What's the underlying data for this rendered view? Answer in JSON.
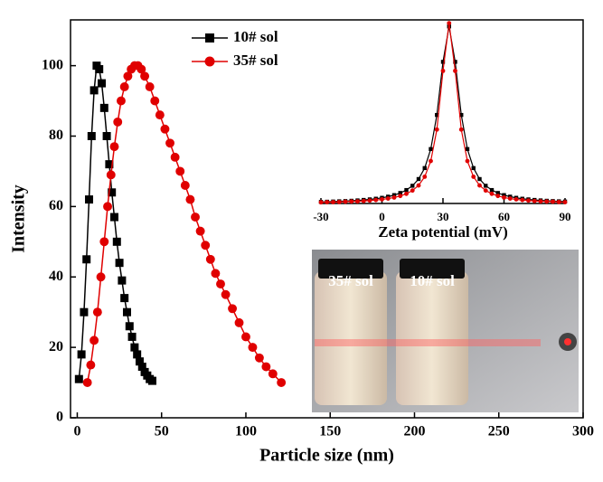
{
  "chart_data": [
    {
      "type": "line",
      "xlabel": "Particle size (nm)",
      "ylabel": "Intensity",
      "xlim": [
        -4,
        300
      ],
      "xticks": [
        0,
        50,
        100,
        150,
        200,
        250,
        300
      ],
      "ylim": [
        0,
        113
      ],
      "yticks": [
        0,
        20,
        40,
        60,
        80,
        100
      ],
      "legend": "top-center",
      "series": [
        {
          "name": "10# sol",
          "color": "#000000",
          "marker": "square",
          "x": [
            1,
            2.5,
            4,
            5.5,
            7,
            8.5,
            10,
            11.5,
            13,
            14.5,
            16,
            17.5,
            19,
            20.5,
            22,
            23.5,
            25,
            26.5,
            28,
            29.5,
            31,
            32.5,
            34,
            35.5,
            37,
            38.5,
            40,
            41.5,
            43,
            44.5
          ],
          "values": [
            11,
            18,
            30,
            45,
            62,
            80,
            93,
            100,
            99,
            95,
            88,
            80,
            72,
            64,
            57,
            50,
            44,
            39,
            34,
            30,
            26,
            23,
            20,
            18,
            16,
            14.5,
            13,
            12,
            11,
            10.5
          ]
        },
        {
          "name": "35# sol",
          "color": "#e00000",
          "marker": "circle",
          "x": [
            6,
            8,
            10,
            12,
            14,
            16,
            18,
            20,
            22,
            24,
            26,
            28,
            30,
            32,
            34,
            36,
            38,
            40,
            43,
            46,
            49,
            52,
            55,
            58,
            61,
            64,
            67,
            70,
            73,
            76,
            79,
            82,
            85,
            88,
            92,
            96,
            100,
            104,
            108,
            112,
            116,
            121
          ],
          "values": [
            10,
            15,
            22,
            30,
            40,
            50,
            60,
            69,
            77,
            84,
            90,
            94,
            97,
            99,
            100,
            100,
            99,
            97,
            94,
            90,
            86,
            82,
            78,
            74,
            70,
            66,
            62,
            57,
            53,
            49,
            45,
            41,
            38,
            35,
            31,
            27,
            23,
            20,
            17,
            14.5,
            12.5,
            10
          ]
        }
      ]
    },
    {
      "type": "line",
      "xlabel": "Zeta potential (mV)",
      "xlim": [
        -30,
        90
      ],
      "xticks": [
        -30,
        0,
        30,
        60,
        90
      ],
      "ylim": [
        0,
        112
      ],
      "x": [
        -30,
        -27,
        -24,
        -21,
        -18,
        -15,
        -12,
        -9,
        -6,
        -3,
        0,
        3,
        6,
        9,
        12,
        15,
        18,
        21,
        24,
        27,
        30,
        33,
        36,
        39,
        42,
        45,
        48,
        51,
        54,
        57,
        60,
        63,
        66,
        69,
        72,
        75,
        78,
        81,
        84,
        87,
        90
      ],
      "series": [
        {
          "color": "#000000",
          "marker": "square",
          "values": [
            0.96,
            1.07,
            1.19,
            1.32,
            1.47,
            1.65,
            1.88,
            2.16,
            2.5,
            2.9,
            3.45,
            4.15,
            5.1,
            6.4,
            8.2,
            10.8,
            14.9,
            21.6,
            33.2,
            54,
            86.4,
            108,
            86.4,
            54,
            33.2,
            21.6,
            14.9,
            10.8,
            8.2,
            6.4,
            5.1,
            4.15,
            3.45,
            2.9,
            2.5,
            2.16,
            1.88,
            1.65,
            1.47,
            1.32,
            1.19
          ]
        },
        {
          "color": "#e00000",
          "marker": "circle",
          "values": [
            0.7,
            0.8,
            0.8,
            0.9,
            1.1,
            1.2,
            1.3,
            1.5,
            1.8,
            2.1,
            2.5,
            3,
            3.6,
            4.6,
            5.9,
            7.9,
            11,
            16.3,
            25.9,
            45.1,
            80.9,
            110,
            80.9,
            45.1,
            25.9,
            16.3,
            11,
            7.9,
            5.9,
            4.6,
            3.6,
            3,
            2.5,
            2.1,
            1.8,
            1.5,
            1.3,
            1.2,
            1.1,
            0.9,
            0.8
          ]
        }
      ]
    }
  ],
  "photo": {
    "labels": [
      "35# sol",
      "10# sol"
    ]
  }
}
